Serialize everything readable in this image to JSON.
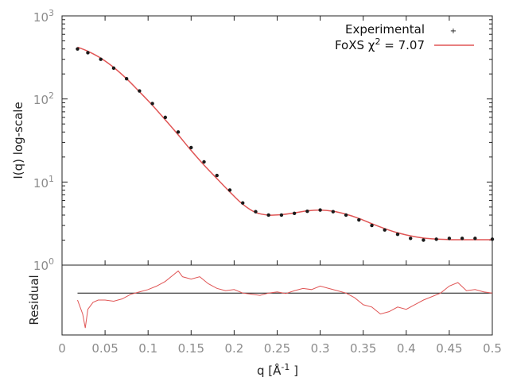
{
  "chart_data": {
    "type": "line",
    "x_axis": {
      "label_main": "q [Å",
      "label_sup": "-1",
      "label_end": " ]",
      "ticks": [
        0,
        0.05,
        0.1,
        0.15,
        0.2,
        0.25,
        0.3,
        0.35,
        0.4,
        0.45,
        0.5
      ],
      "tick_labels": [
        "0",
        "0.05",
        "0.1",
        "0.15",
        "0.2",
        "0.25",
        "0.3",
        "0.35",
        "0.4",
        "0.45",
        "0.5"
      ],
      "range": [
        0,
        0.5
      ]
    },
    "y_axis": {
      "label": "I(q) log-scale",
      "scale": "log",
      "range": [
        1,
        1000
      ],
      "ticks": [
        {
          "base": "10",
          "exp": "3",
          "value": 1000
        },
        {
          "base": "10",
          "exp": "2",
          "value": 100
        },
        {
          "base": "10",
          "exp": "1",
          "value": 10
        },
        {
          "base": "10",
          "exp": "0",
          "value": 1
        }
      ]
    },
    "residual_axis": {
      "label": "Residual"
    },
    "legend": {
      "placement": "top-right",
      "experimental_label": "Experimental",
      "fit_label_main": "FoXS χ",
      "fit_label_sup": "2",
      "fit_label_end": " = 7.07"
    },
    "grid": false,
    "series": [
      {
        "name": "Experimental",
        "style": "points",
        "color": "#1a1a1a",
        "x": [
          0.018,
          0.03,
          0.045,
          0.06,
          0.075,
          0.09,
          0.105,
          0.12,
          0.135,
          0.15,
          0.165,
          0.18,
          0.195,
          0.21,
          0.225,
          0.24,
          0.255,
          0.27,
          0.285,
          0.3,
          0.315,
          0.33,
          0.345,
          0.36,
          0.375,
          0.39,
          0.405,
          0.42,
          0.435,
          0.45,
          0.465,
          0.48,
          0.5
        ],
        "y": [
          400,
          360,
          300,
          235,
          175,
          125,
          88,
          60,
          40,
          26,
          17.5,
          12,
          8,
          5.6,
          4.4,
          4.0,
          4.0,
          4.2,
          4.45,
          4.6,
          4.4,
          4.0,
          3.5,
          3.0,
          2.65,
          2.35,
          2.1,
          2.0,
          2.05,
          2.1,
          2.1,
          2.1,
          2.05
        ]
      },
      {
        "name": "FoXS",
        "style": "line",
        "color": "#e05555",
        "x": [
          0.018,
          0.03,
          0.045,
          0.06,
          0.075,
          0.09,
          0.105,
          0.12,
          0.135,
          0.15,
          0.165,
          0.18,
          0.195,
          0.21,
          0.225,
          0.24,
          0.255,
          0.27,
          0.285,
          0.3,
          0.315,
          0.33,
          0.345,
          0.36,
          0.375,
          0.39,
          0.405,
          0.42,
          0.435,
          0.45,
          0.465,
          0.48,
          0.5
        ],
        "y": [
          420,
          375,
          310,
          240,
          175,
          122,
          84,
          56,
          37,
          24,
          16,
          11,
          7.6,
          5.4,
          4.3,
          4.0,
          4.05,
          4.25,
          4.5,
          4.6,
          4.45,
          4.1,
          3.65,
          3.15,
          2.75,
          2.45,
          2.25,
          2.12,
          2.06,
          2.03,
          2.02,
          2.02,
          2.02
        ]
      }
    ],
    "residual_series": {
      "color": "#e05555",
      "reference_line_color": "#111111",
      "x": [
        0.018,
        0.024,
        0.027,
        0.03,
        0.036,
        0.042,
        0.05,
        0.06,
        0.07,
        0.08,
        0.09,
        0.1,
        0.11,
        0.12,
        0.13,
        0.135,
        0.14,
        0.15,
        0.16,
        0.17,
        0.18,
        0.19,
        0.2,
        0.21,
        0.22,
        0.23,
        0.24,
        0.25,
        0.26,
        0.27,
        0.28,
        0.29,
        0.3,
        0.31,
        0.32,
        0.33,
        0.34,
        0.35,
        0.36,
        0.37,
        0.38,
        0.39,
        0.4,
        0.41,
        0.42,
        0.43,
        0.44,
        0.45,
        0.46,
        0.47,
        0.48,
        0.49,
        0.5
      ],
      "y": [
        -0.3,
        -0.9,
        -1.5,
        -0.7,
        -0.4,
        -0.3,
        -0.3,
        -0.35,
        -0.25,
        -0.05,
        0.05,
        0.15,
        0.3,
        0.5,
        0.8,
        0.95,
        0.7,
        0.6,
        0.7,
        0.4,
        0.2,
        0.1,
        0.15,
        0.0,
        -0.05,
        -0.1,
        0.0,
        0.05,
        -0.02,
        0.1,
        0.2,
        0.15,
        0.3,
        0.2,
        0.1,
        0.0,
        -0.2,
        -0.5,
        -0.6,
        -0.9,
        -0.8,
        -0.6,
        -0.7,
        -0.5,
        -0.3,
        -0.15,
        0.0,
        0.3,
        0.45,
        0.1,
        0.15,
        0.05,
        0.0
      ],
      "range": [
        -1.8,
        1.2
      ]
    }
  }
}
